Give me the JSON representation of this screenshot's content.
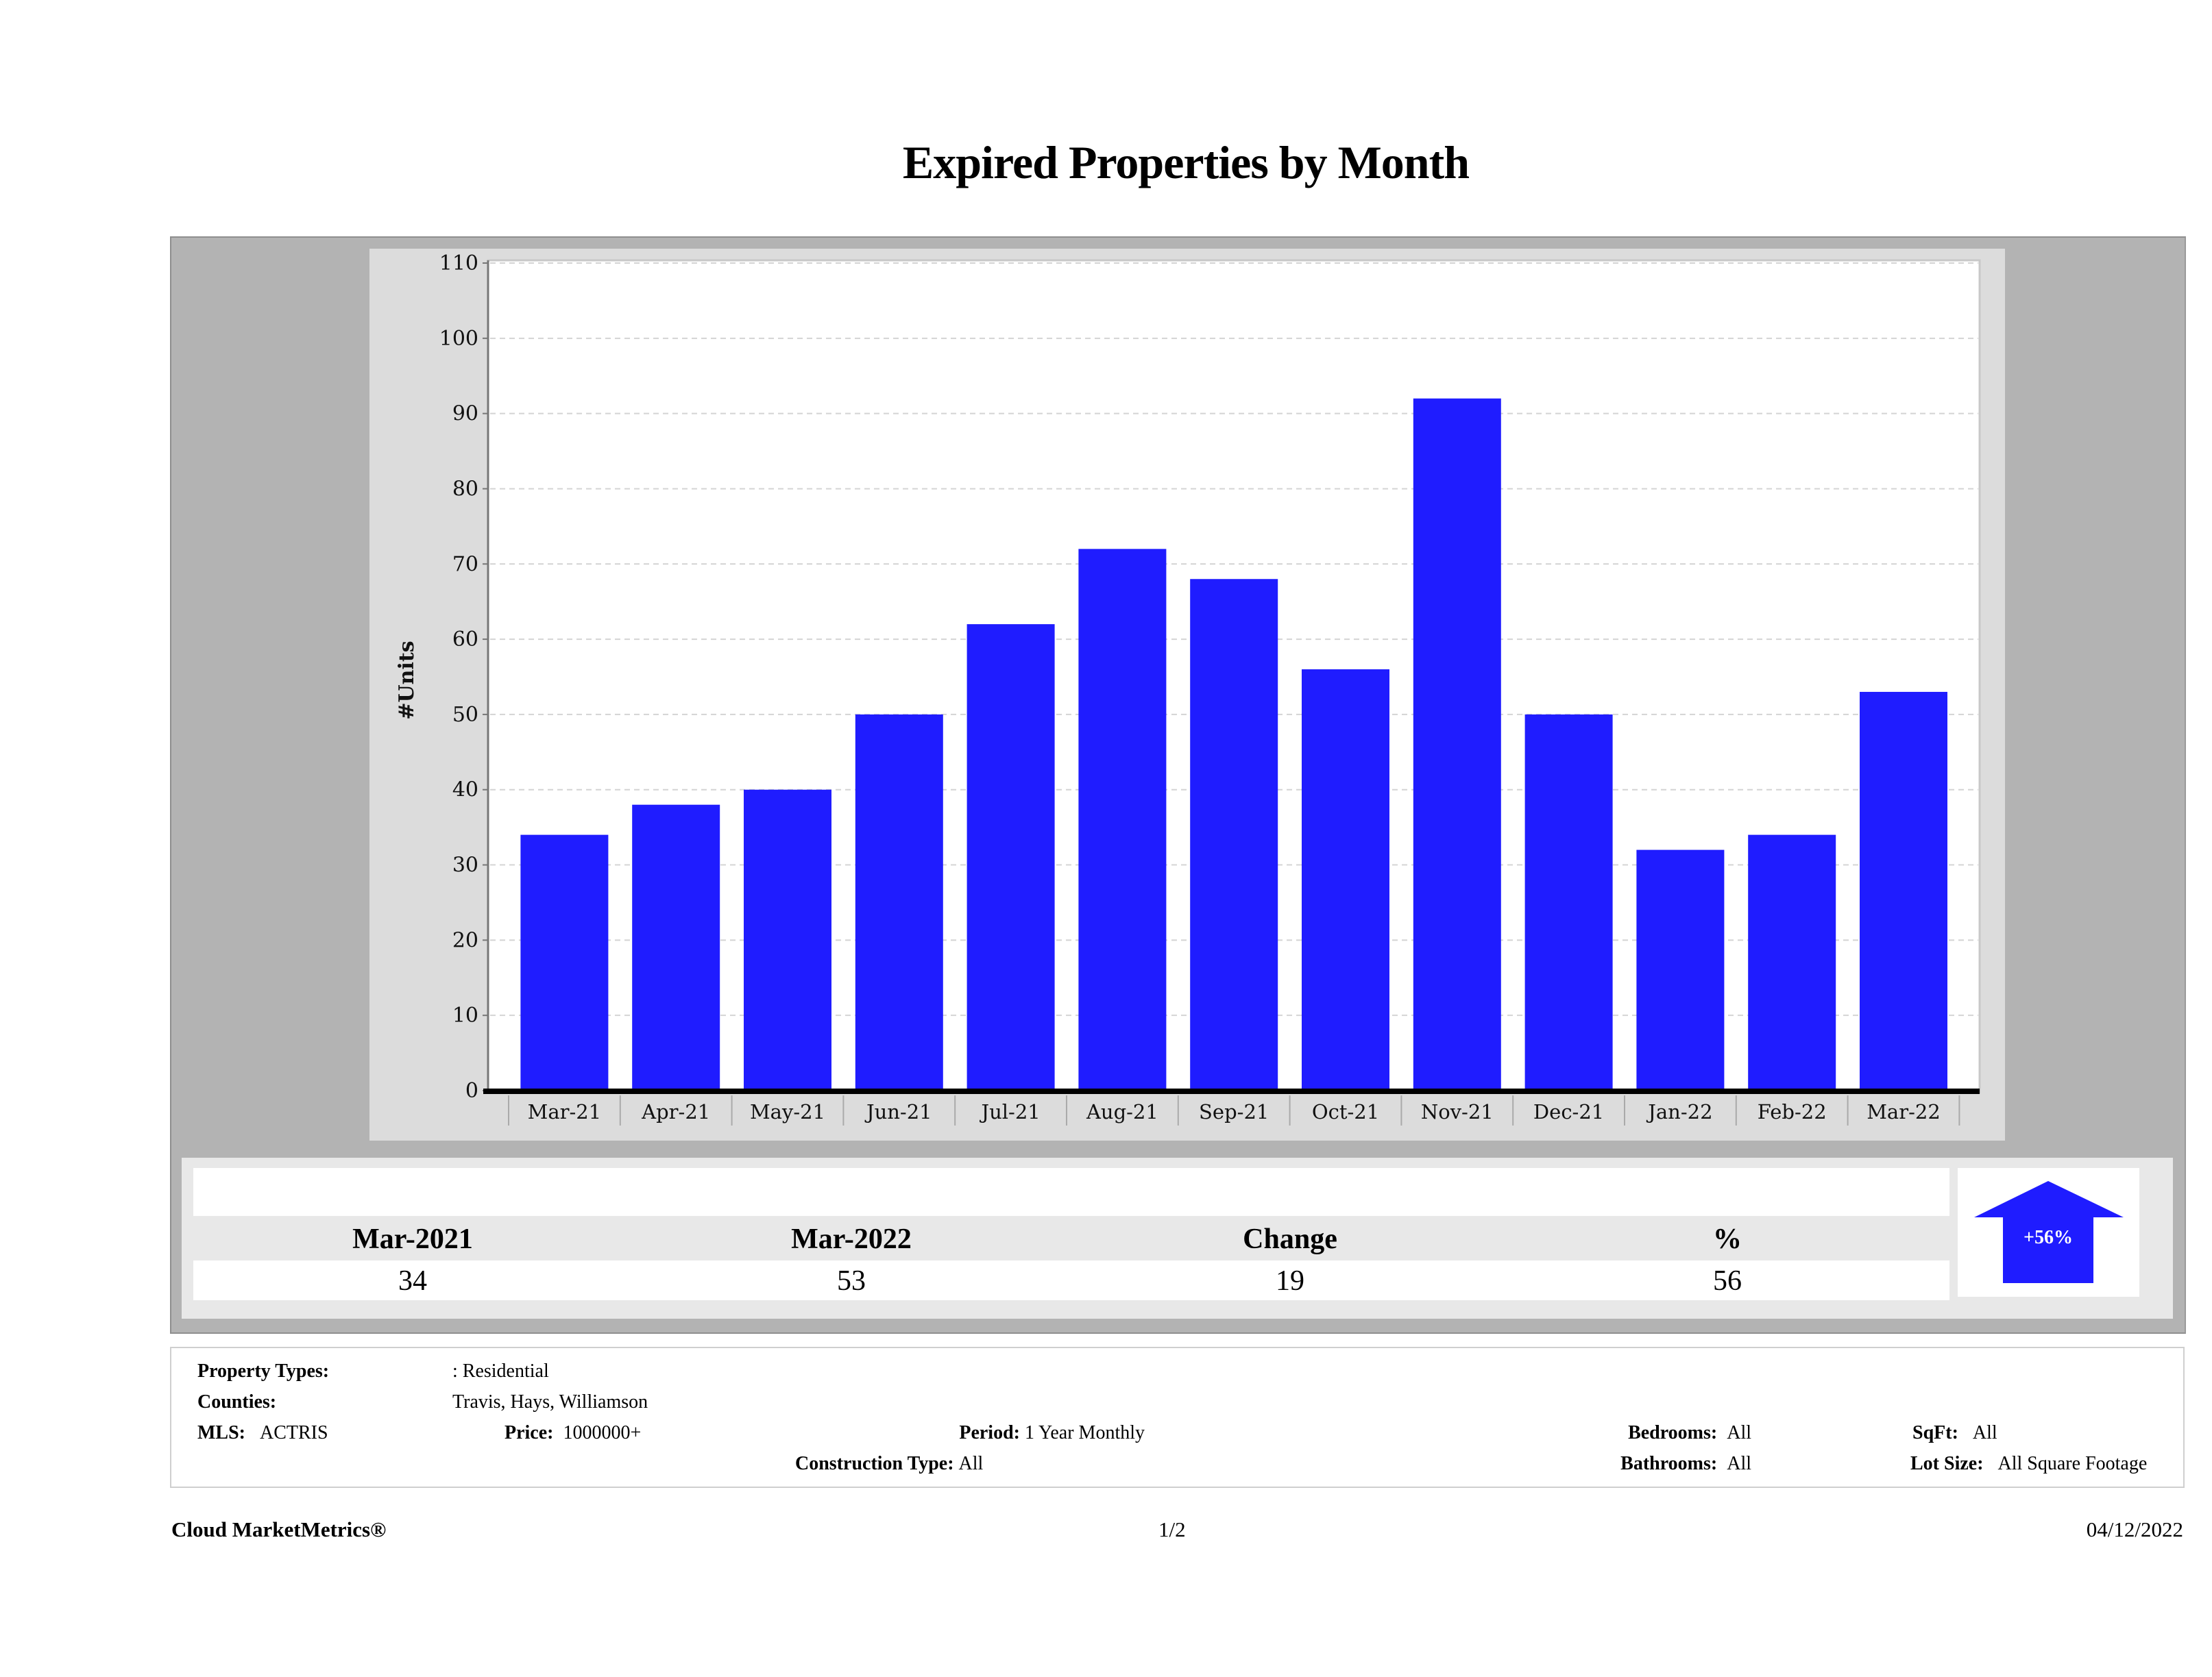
{
  "title": "Expired Properties by Month",
  "chart_data": {
    "type": "bar",
    "title": "Expired Properties by Month",
    "xlabel": "",
    "ylabel": "#Units",
    "ylim": [
      0,
      110
    ],
    "yticks": [
      0,
      10,
      20,
      30,
      40,
      50,
      60,
      70,
      80,
      90,
      100,
      110
    ],
    "grid": true,
    "legend": "none",
    "bar_color": "#1f1cff",
    "categories": [
      "Mar-21",
      "Apr-21",
      "May-21",
      "Jun-21",
      "Jul-21",
      "Aug-21",
      "Sep-21",
      "Oct-21",
      "Nov-21",
      "Dec-21",
      "Jan-22",
      "Feb-22",
      "Mar-22"
    ],
    "values": [
      34,
      38,
      40,
      50,
      62,
      72,
      68,
      56,
      92,
      50,
      32,
      34,
      53
    ]
  },
  "summary": {
    "headers": [
      "Mar-2021",
      "Mar-2022",
      "Change",
      "%"
    ],
    "values": [
      "34",
      "53",
      "19",
      "56"
    ],
    "badge": {
      "label": "+56%",
      "direction": "up",
      "icon": "arrow-up-icon",
      "color": "#1f1cff"
    }
  },
  "details": {
    "property_types_label": "Property Types:",
    "property_types_value": ": Residential",
    "counties_label": "Counties:",
    "counties_value": "Travis, Hays, Williamson",
    "mls_label": "MLS:",
    "mls_value": "ACTRIS",
    "price_label": "Price:",
    "price_value": "1000000+",
    "period_label": "Period:",
    "period_value": "1 Year Monthly",
    "construction_label": "Construction Type:",
    "construction_value": "All",
    "bedrooms_label": "Bedrooms:",
    "bedrooms_value": "All",
    "bathrooms_label": "Bathrooms:",
    "bathrooms_value": "All",
    "sqft_label": "SqFt:",
    "sqft_value": "All",
    "lot_label": "Lot Size:",
    "lot_value": "All Square Footage"
  },
  "footer": {
    "brand": "Cloud MarketMetrics®",
    "page": "1/2",
    "date": "04/12/2022"
  }
}
